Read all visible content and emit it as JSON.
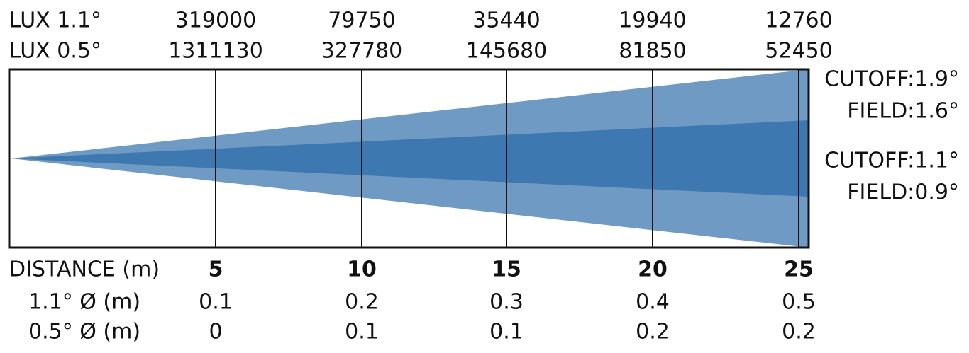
{
  "lux_rows": [
    {
      "label": "LUX  1.1°",
      "values": [
        "319000",
        "79750",
        "35440",
        "19940",
        "12760"
      ]
    },
    {
      "label": "LUX  0.5°",
      "values": [
        "1311130",
        "327780",
        "145680",
        "81850",
        "52450"
      ]
    }
  ],
  "beam_labels": [
    "CUTOFF:1.9°",
    "FIELD:1.6°",
    "CUTOFF:1.1°",
    "FIELD:0.9°"
  ],
  "distance": {
    "label": "DISTANCE (m)",
    "values": [
      "5",
      "10",
      "15",
      "20",
      "25"
    ]
  },
  "diameter_rows": [
    {
      "label": "1.1° Ø (m)",
      "values": [
        "0.1",
        "0.2",
        "0.3",
        "0.4",
        "0.5"
      ]
    },
    {
      "label": "0.5° Ø (m)",
      "values": [
        "0",
        "0.1",
        "0.1",
        "0.2",
        "0.2"
      ]
    }
  ]
}
